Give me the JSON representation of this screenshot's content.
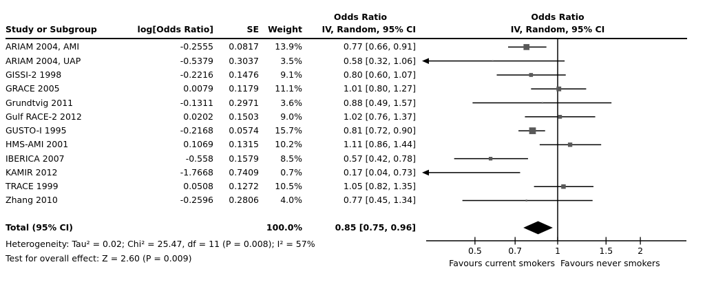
{
  "table": {
    "headers": {
      "study": "Study or Subgroup",
      "log_or": "log[Odds Ratio]",
      "se": "SE",
      "weight": "Weight",
      "or_line1": "Odds Ratio",
      "or_line2": "IV, Random, 95% CI"
    },
    "rows": [
      {
        "study": "ARIAM 2004, AMI",
        "log_or": "-0.2555",
        "se": "0.0817",
        "weight": "13.9%",
        "ci": "0.77 [0.66, 0.91]"
      },
      {
        "study": "ARIAM 2004, UAP",
        "log_or": "-0.5379",
        "se": "0.3037",
        "weight": "3.5%",
        "ci": "0.58 [0.32, 1.06]"
      },
      {
        "study": "GISSI-2 1998",
        "log_or": "-0.2216",
        "se": "0.1476",
        "weight": "9.1%",
        "ci": "0.80 [0.60, 1.07]"
      },
      {
        "study": "GRACE 2005",
        "log_or": "0.0079",
        "se": "0.1179",
        "weight": "11.1%",
        "ci": "1.01 [0.80, 1.27]"
      },
      {
        "study": "Grundtvig 2011",
        "log_or": "-0.1311",
        "se": "0.2971",
        "weight": "3.6%",
        "ci": "0.88 [0.49, 1.57]"
      },
      {
        "study": "Gulf RACE-2 2012",
        "log_or": "0.0202",
        "se": "0.1503",
        "weight": "9.0%",
        "ci": "1.02 [0.76, 1.37]"
      },
      {
        "study": "GUSTO-I 1995",
        "log_or": "-0.2168",
        "se": "0.0574",
        "weight": "15.7%",
        "ci": "0.81 [0.72, 0.90]"
      },
      {
        "study": "HMS-AMI 2001",
        "log_or": "0.1069",
        "se": "0.1315",
        "weight": "10.2%",
        "ci": "1.11 [0.86, 1.44]"
      },
      {
        "study": "IBERICA 2007",
        "log_or": "-0.558",
        "se": "0.1579",
        "weight": "8.5%",
        "ci": "0.57 [0.42, 0.78]"
      },
      {
        "study": "KAMIR 2012",
        "log_or": "-1.7668",
        "se": "0.7409",
        "weight": "0.7%",
        "ci": "0.17 [0.04, 0.73]"
      },
      {
        "study": "TRACE 1999",
        "log_or": "0.0508",
        "se": "0.1272",
        "weight": "10.5%",
        "ci": "1.05 [0.82, 1.35]"
      },
      {
        "study": "Zhang 2010",
        "log_or": "-0.2596",
        "se": "0.2806",
        "weight": "4.0%",
        "ci": "0.77 [0.45, 1.34]"
      }
    ],
    "total_row": {
      "label": "Total (95% CI)",
      "weight": "100.0%",
      "ci": "0.85 [0.75, 0.96]"
    },
    "footnotes": {
      "heterogeneity": "Heterogeneity: Tau² = 0.02; Chi² = 25.47, df = 11 (P = 0.008); I² = 57%",
      "overall_effect": "Test for overall effect: Z = 2.60 (P = 0.009)"
    }
  },
  "plot": {
    "header_line1": "Odds Ratio",
    "header_line2": "IV, Random, 95% CI",
    "tick_labels": [
      "0.5",
      "0.7",
      "1",
      "1.5",
      "2"
    ],
    "favours_left": "Favours current smokers",
    "favours_right": "Favours never smokers",
    "colors": {
      "marker": "#595959",
      "line": "#000000",
      "diamond": "#000000"
    }
  },
  "chart_data": {
    "type": "scatter",
    "subtype": "forest-plot-meta-analysis",
    "effect_measure": "Odds Ratio",
    "model": "IV, Random, 95% CI",
    "x_scale": "log",
    "x_ticks": [
      0.5,
      0.7,
      1,
      1.5,
      2
    ],
    "x_axis_range": [
      0.33,
      2.95
    ],
    "axis_label_left": "Favours current smokers",
    "axis_label_right": "Favours never smokers",
    "studies": [
      {
        "name": "ARIAM 2004, AMI",
        "log_or": -0.2555,
        "se": 0.0817,
        "weight_pct": 13.9,
        "or": 0.77,
        "ci_low": 0.66,
        "ci_high": 0.91
      },
      {
        "name": "ARIAM 2004, UAP",
        "log_or": -0.5379,
        "se": 0.3037,
        "weight_pct": 3.5,
        "or": 0.58,
        "ci_low": 0.32,
        "ci_high": 1.06
      },
      {
        "name": "GISSI-2 1998",
        "log_or": -0.2216,
        "se": 0.1476,
        "weight_pct": 9.1,
        "or": 0.8,
        "ci_low": 0.6,
        "ci_high": 1.07
      },
      {
        "name": "GRACE 2005",
        "log_or": 0.0079,
        "se": 0.1179,
        "weight_pct": 11.1,
        "or": 1.01,
        "ci_low": 0.8,
        "ci_high": 1.27
      },
      {
        "name": "Grundtvig 2011",
        "log_or": -0.1311,
        "se": 0.2971,
        "weight_pct": 3.6,
        "or": 0.88,
        "ci_low": 0.49,
        "ci_high": 1.57
      },
      {
        "name": "Gulf RACE-2 2012",
        "log_or": 0.0202,
        "se": 0.1503,
        "weight_pct": 9.0,
        "or": 1.02,
        "ci_low": 0.76,
        "ci_high": 1.37
      },
      {
        "name": "GUSTO-I 1995",
        "log_or": -0.2168,
        "se": 0.0574,
        "weight_pct": 15.7,
        "or": 0.81,
        "ci_low": 0.72,
        "ci_high": 0.9
      },
      {
        "name": "HMS-AMI 2001",
        "log_or": 0.1069,
        "se": 0.1315,
        "weight_pct": 10.2,
        "or": 1.11,
        "ci_low": 0.86,
        "ci_high": 1.44
      },
      {
        "name": "IBERICA 2007",
        "log_or": -0.558,
        "se": 0.1579,
        "weight_pct": 8.5,
        "or": 0.57,
        "ci_low": 0.42,
        "ci_high": 0.78
      },
      {
        "name": "KAMIR 2012",
        "log_or": -1.7668,
        "se": 0.7409,
        "weight_pct": 0.7,
        "or": 0.17,
        "ci_low": 0.04,
        "ci_high": 0.73
      },
      {
        "name": "TRACE 1999",
        "log_or": 0.0508,
        "se": 0.1272,
        "weight_pct": 10.5,
        "or": 1.05,
        "ci_low": 0.82,
        "ci_high": 1.35
      },
      {
        "name": "Zhang 2010",
        "log_or": -0.2596,
        "se": 0.2806,
        "weight_pct": 4.0,
        "or": 0.77,
        "ci_low": 0.45,
        "ci_high": 1.34
      }
    ],
    "total": {
      "name": "Total (95% CI)",
      "weight_pct": 100.0,
      "or": 0.85,
      "ci_low": 0.75,
      "ci_high": 0.96
    },
    "heterogeneity": {
      "tau2": 0.02,
      "chi2": 25.47,
      "df": 11,
      "p": 0.008,
      "i2_pct": 57
    },
    "overall_effect": {
      "z": 2.6,
      "p": 0.009
    }
  }
}
